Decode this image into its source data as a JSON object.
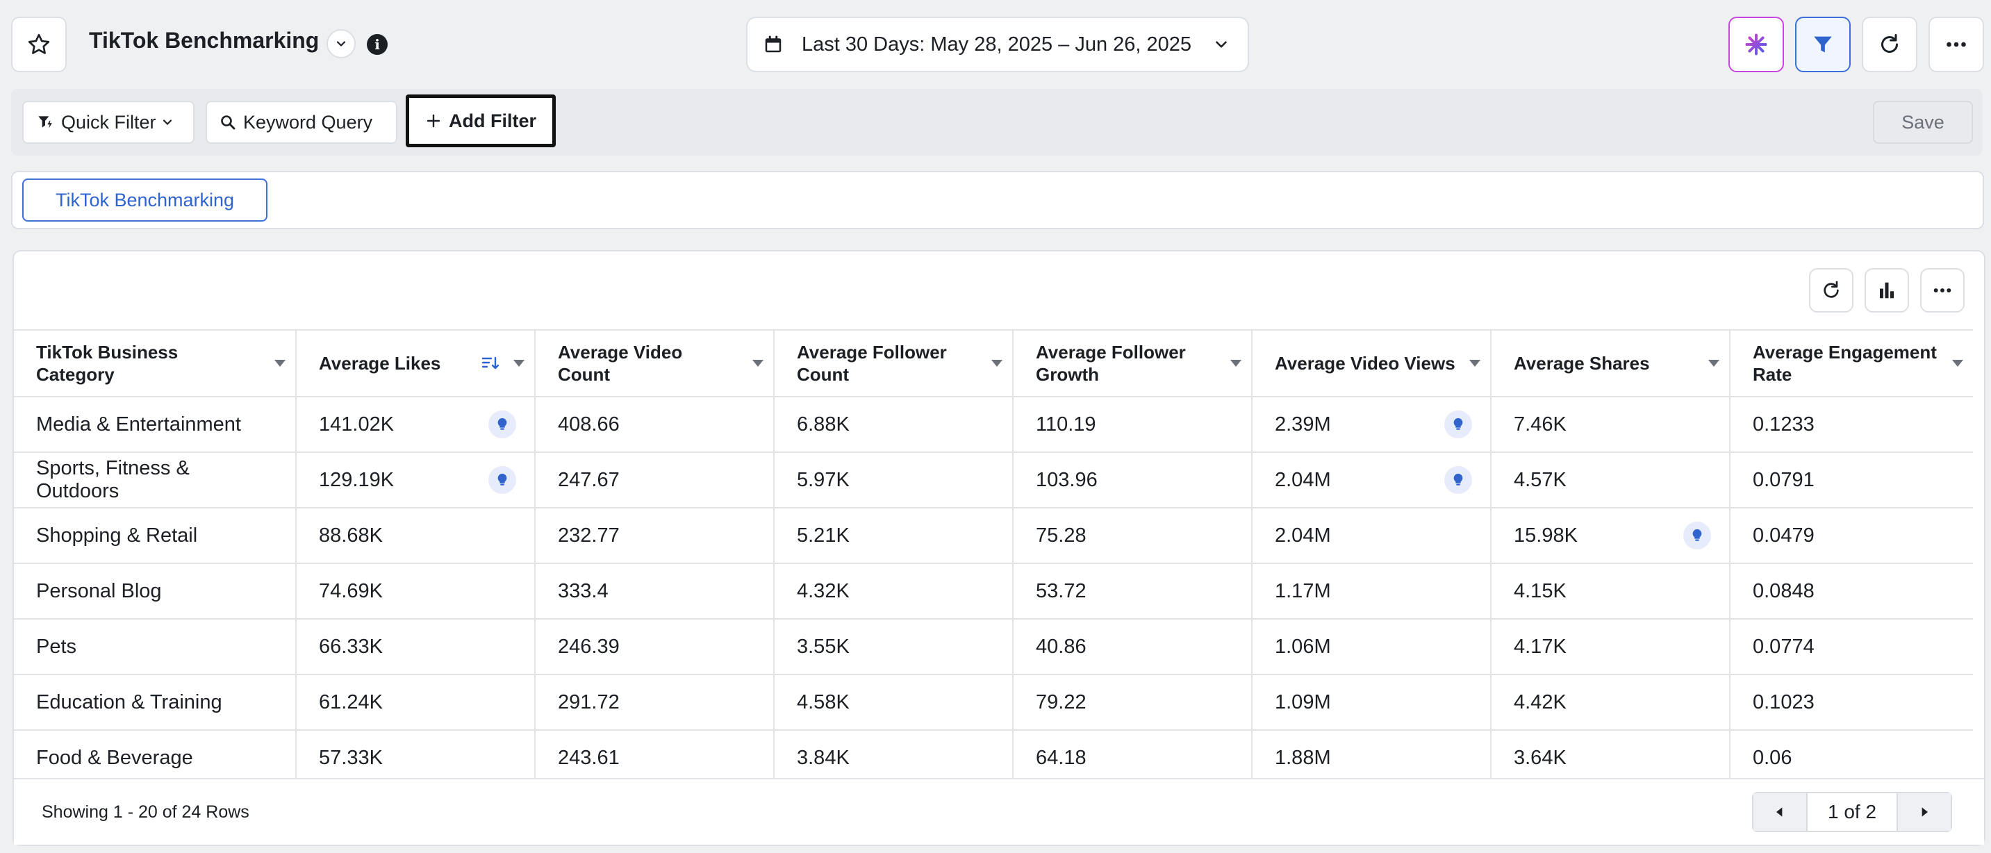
{
  "header": {
    "title": "TikTok Benchmarking",
    "date_range": "Last 30 Days: May 28, 2025 – Jun 26, 2025"
  },
  "filters": {
    "quick_filter": "Quick Filter",
    "keyword_query": "Keyword Query",
    "add_filter": "Add Filter",
    "save": "Save"
  },
  "tabs": [
    {
      "label": "TikTok Benchmarking"
    }
  ],
  "table": {
    "columns": [
      "TikTok Business Category",
      "Average Likes",
      "Average Video Count",
      "Average Follower Count",
      "Average Follower Growth",
      "Average Video Views",
      "Average Shares",
      "Average Engagement Rate"
    ],
    "rows": [
      [
        "Media & Entertainment",
        "141.02K",
        "408.66",
        "6.88K",
        "110.19",
        "2.39M",
        "7.46K",
        "0.1233"
      ],
      [
        "Sports, Fitness & Outdoors",
        "129.19K",
        "247.67",
        "5.97K",
        "103.96",
        "2.04M",
        "4.57K",
        "0.0791"
      ],
      [
        "Shopping & Retail",
        "88.68K",
        "232.77",
        "5.21K",
        "75.28",
        "2.04M",
        "15.98K",
        "0.0479"
      ],
      [
        "Personal Blog",
        "74.69K",
        "333.4",
        "4.32K",
        "53.72",
        "1.17M",
        "4.15K",
        "0.0848"
      ],
      [
        "Pets",
        "66.33K",
        "246.39",
        "3.55K",
        "40.86",
        "1.06M",
        "4.17K",
        "0.0774"
      ],
      [
        "Education & Training",
        "61.24K",
        "291.72",
        "4.58K",
        "79.22",
        "1.09M",
        "4.42K",
        "0.1023"
      ],
      [
        "Food & Beverage",
        "57.33K",
        "243.61",
        "3.84K",
        "64.18",
        "1.88M",
        "3.64K",
        "0.06"
      ]
    ],
    "insight_cells": [
      [
        0,
        1
      ],
      [
        0,
        5
      ],
      [
        1,
        1
      ],
      [
        1,
        5
      ],
      [
        2,
        6
      ]
    ]
  },
  "footer": {
    "rows_info": "Showing 1 - 20 of 24 Rows",
    "page": "1 of 2"
  },
  "colors": {
    "accent": "#2f64cf",
    "ai_button_border": "#c847e0",
    "filter_button_border": "#3b6fd9"
  },
  "icons": [
    "star-icon",
    "chevron-down-icon",
    "info-icon",
    "calendar-icon",
    "sparkle-icon",
    "filter-icon",
    "refresh-icon",
    "more-icon",
    "quick-filter-icon",
    "search-icon",
    "plus-icon",
    "bar-chart-icon",
    "sort-icon",
    "lightbulb-icon",
    "arrow-left-icon",
    "arrow-right-icon"
  ]
}
